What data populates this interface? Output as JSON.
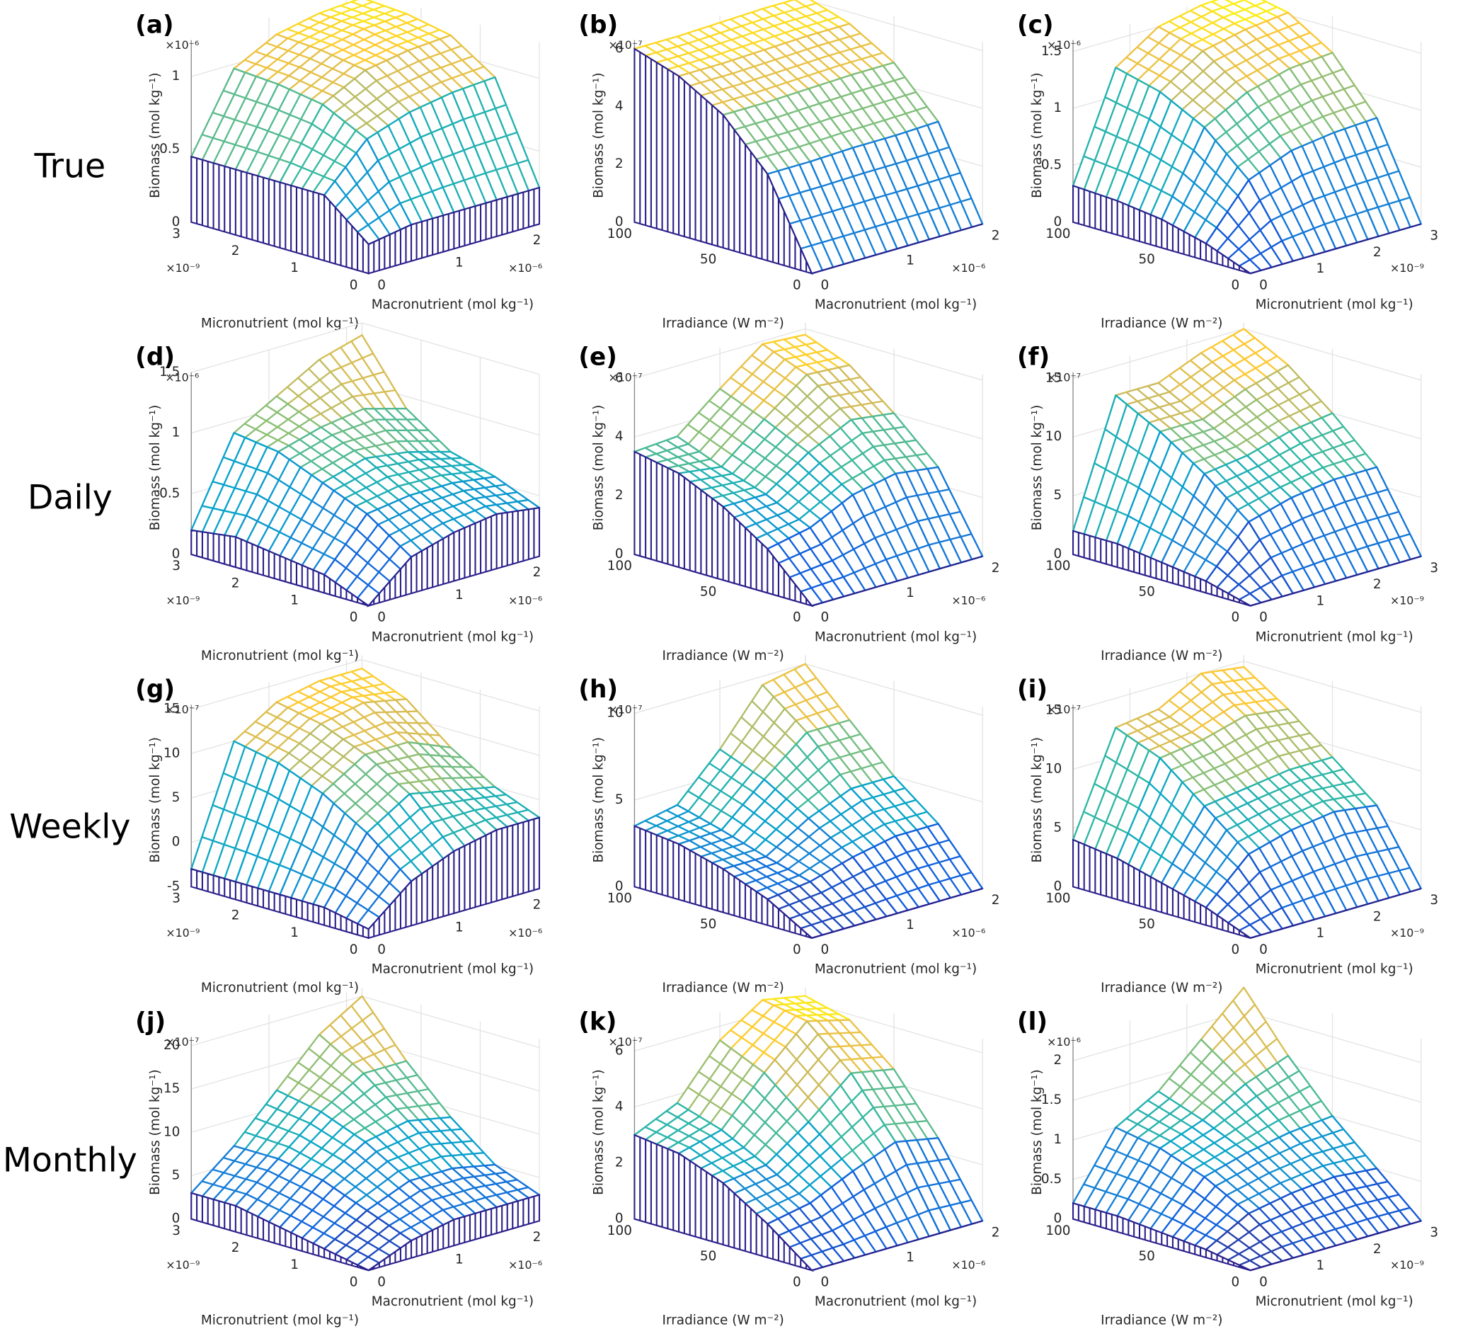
{
  "row_labels": [
    "True",
    "Daily",
    "Weekly",
    "Monthly"
  ],
  "colormap": [
    "#352a87",
    "#0f5cdd",
    "#1481d6",
    "#06a4ca",
    "#2eb7a4",
    "#87bf77",
    "#d1bb59",
    "#fec832",
    "#f9fb0e"
  ],
  "chart_data": [
    {
      "type": "surface",
      "panel_label": "(a)",
      "zlabel": "Biomass (mol kg⁻¹)",
      "xlabel": "Micronutrient (mol kg⁻¹)",
      "ylabel": "Macronutrient (mol kg⁻¹)",
      "zexponent": "×10⁻⁶",
      "xexponent": "×10⁻⁹",
      "yexponent": "×10⁻⁶",
      "xlim": [
        0,
        3
      ],
      "xticks": [
        0,
        1,
        2,
        3
      ],
      "ylim": [
        0,
        2.2
      ],
      "yticks": [
        0,
        1,
        2
      ],
      "zlim": [
        0,
        1.25
      ],
      "zticks": [
        0,
        0.5,
        1
      ],
      "x": [
        0,
        0.75,
        1.5,
        2.25,
        3
      ],
      "y": [
        0,
        0.55,
        1.1,
        1.65,
        2.2
      ],
      "z": [
        [
          0.2,
          0.25,
          0.25,
          0.25,
          0.25
        ],
        [
          0.45,
          0.75,
          0.85,
          0.9,
          0.92
        ],
        [
          0.45,
          0.9,
          1.05,
          1.1,
          1.12
        ],
        [
          0.45,
          0.95,
          1.1,
          1.16,
          1.18
        ],
        [
          0.45,
          0.97,
          1.12,
          1.18,
          1.2
        ]
      ]
    },
    {
      "type": "surface",
      "panel_label": "(b)",
      "zlabel": "Biomass (mol kg⁻¹)",
      "xlabel": "Irradiance (W m⁻²)",
      "ylabel": "Macronutrient (mol kg⁻¹)",
      "zexponent": "×10⁻⁷",
      "yexponent": "×10⁻⁶",
      "xlim": [
        0,
        100
      ],
      "xticks": [
        0,
        50,
        100
      ],
      "ylim": [
        0,
        2
      ],
      "yticks": [
        0,
        1,
        2
      ],
      "zlim": [
        0,
        6.3
      ],
      "zticks": [
        0,
        2,
        4,
        6
      ],
      "x": [
        0,
        25,
        50,
        75,
        100
      ],
      "y": [
        0,
        0.5,
        1,
        1.5,
        2
      ],
      "z": [
        [
          0,
          0,
          0,
          0,
          0
        ],
        [
          3.0,
          3.0,
          3.05,
          3.05,
          3.1
        ],
        [
          4.6,
          4.6,
          4.65,
          4.7,
          4.7
        ],
        [
          5.5,
          5.5,
          5.55,
          5.6,
          5.6
        ],
        [
          6.0,
          6.0,
          6.05,
          6.1,
          6.1
        ]
      ]
    },
    {
      "type": "surface",
      "panel_label": "(c)",
      "zlabel": "Biomass (mol kg⁻¹)",
      "xlabel": "Irradiance (W m⁻²)",
      "ylabel": "Micronutrient (mol kg⁻¹)",
      "zexponent": "×10⁻⁶",
      "yexponent": "×10⁻⁹",
      "xlim": [
        0,
        100
      ],
      "xticks": [
        0,
        50,
        100
      ],
      "ylim": [
        0,
        3
      ],
      "yticks": [
        0,
        1,
        2,
        3
      ],
      "zlim": [
        0,
        1.6
      ],
      "zticks": [
        0,
        0.5,
        1,
        1.5
      ],
      "x": [
        0,
        25,
        50,
        75,
        100
      ],
      "y": [
        0,
        0.75,
        1.5,
        2.25,
        3
      ],
      "z": [
        [
          0,
          0,
          0,
          0,
          0
        ],
        [
          0.15,
          0.6,
          0.75,
          0.8,
          0.82
        ],
        [
          0.25,
          0.95,
          1.15,
          1.25,
          1.28
        ],
        [
          0.3,
          1.15,
          1.4,
          1.48,
          1.52
        ],
        [
          0.32,
          1.25,
          1.5,
          1.58,
          1.6
        ]
      ]
    },
    {
      "type": "surface",
      "panel_label": "(d)",
      "zlabel": "Biomass (mol kg⁻¹)",
      "xlabel": "Micronutrient (mol kg⁻¹)",
      "ylabel": "Macronutrient (mol kg⁻¹)",
      "zexponent": "×10⁻⁶",
      "xexponent": "×10⁻⁹",
      "yexponent": "×10⁻⁶",
      "xlim": [
        0,
        3
      ],
      "xticks": [
        0,
        1,
        2,
        3
      ],
      "ylim": [
        0,
        2.2
      ],
      "yticks": [
        0,
        1,
        2
      ],
      "zlim": [
        0,
        1.5
      ],
      "zticks": [
        0,
        0.5,
        1,
        1.5
      ],
      "x": [
        0,
        0.75,
        1.5,
        2.25,
        3
      ],
      "y": [
        0,
        0.55,
        1.1,
        1.65,
        2.2
      ],
      "z": [
        [
          0,
          0.3,
          0.4,
          0.45,
          0.4
        ],
        [
          0.15,
          0.55,
          0.6,
          0.6,
          0.55
        ],
        [
          0.2,
          0.7,
          0.8,
          0.75,
          0.65
        ],
        [
          0.25,
          0.85,
          0.95,
          1.0,
          0.9
        ],
        [
          0.2,
          0.9,
          1.1,
          1.3,
          1.4
        ]
      ]
    },
    {
      "type": "surface",
      "panel_label": "(e)",
      "zlabel": "Biomass (mol kg⁻¹)",
      "xlabel": "Irradiance (W m⁻²)",
      "ylabel": "Macronutrient (mol kg⁻¹)",
      "zexponent": "×10⁻⁷",
      "yexponent": "×10⁻⁶",
      "xlim": [
        0,
        100
      ],
      "xticks": [
        0,
        50,
        100
      ],
      "ylim": [
        0,
        2
      ],
      "yticks": [
        0,
        1,
        2
      ],
      "zlim": [
        0,
        6.2
      ],
      "zticks": [
        0,
        2,
        4,
        6
      ],
      "x": [
        0,
        25,
        50,
        75,
        100
      ],
      "y": [
        0,
        0.5,
        1,
        1.5,
        2
      ],
      "z": [
        [
          0,
          0,
          0,
          0,
          0
        ],
        [
          1.5,
          1.8,
          2.5,
          2.8,
          2.6
        ],
        [
          2.5,
          2.5,
          3.5,
          4.2,
          4.0
        ],
        [
          3.2,
          3.0,
          4.2,
          5.3,
          5.2
        ],
        [
          3.5,
          3.6,
          4.8,
          5.9,
          5.8
        ]
      ]
    },
    {
      "type": "surface",
      "panel_label": "(f)",
      "zlabel": "Biomass (mol kg⁻¹)",
      "xlabel": "Irradiance (W m⁻²)",
      "ylabel": "Micronutrient (mol kg⁻¹)",
      "zexponent": "×10⁻⁷",
      "yexponent": "×10⁻⁹",
      "xlim": [
        0,
        100
      ],
      "xticks": [
        0,
        50,
        100
      ],
      "ylim": [
        0,
        3
      ],
      "yticks": [
        0,
        1,
        2,
        3
      ],
      "zlim": [
        0,
        15.5
      ],
      "zticks": [
        0,
        5,
        10,
        15
      ],
      "x": [
        0,
        25,
        50,
        75,
        100
      ],
      "y": [
        0,
        0.75,
        1.5,
        2.25,
        3
      ],
      "z": [
        [
          0,
          0,
          0,
          0,
          0
        ],
        [
          1,
          5,
          6,
          6.5,
          6.5
        ],
        [
          1.5,
          8,
          8.5,
          9.5,
          10
        ],
        [
          2,
          10.5,
          10.5,
          12,
          13
        ],
        [
          2,
          12.5,
          12.5,
          14,
          15
        ]
      ]
    },
    {
      "type": "surface",
      "panel_label": "(g)",
      "zlabel": "Biomass (mol kg⁻¹)",
      "xlabel": "Micronutrient (mol kg⁻¹)",
      "ylabel": "Macronutrient (mol kg⁻¹)",
      "zexponent": "×10⁻⁷",
      "xexponent": "×10⁻⁹",
      "yexponent": "×10⁻⁶",
      "xlim": [
        0,
        3
      ],
      "xticks": [
        0,
        1,
        2,
        3
      ],
      "ylim": [
        0,
        2.2
      ],
      "yticks": [
        0,
        1,
        2
      ],
      "zlim": [
        -5,
        15.5
      ],
      "zticks": [
        -5,
        0,
        5,
        10,
        15
      ],
      "x": [
        0,
        0.75,
        1.5,
        2.25,
        3
      ],
      "y": [
        0,
        0.55,
        1.1,
        1.65,
        2.2
      ],
      "z": [
        [
          -4,
          0,
          2,
          3,
          3
        ],
        [
          -3,
          4,
          7,
          6,
          5
        ],
        [
          -3,
          7,
          10,
          10,
          8
        ],
        [
          -3,
          9,
          12,
          13,
          12
        ],
        [
          -3,
          10,
          13,
          14,
          14
        ]
      ]
    },
    {
      "type": "surface",
      "panel_label": "(h)",
      "zlabel": "Biomass (mol kg⁻¹)",
      "xlabel": "Irradiance (W m⁻²)",
      "ylabel": "Macronutrient (mol kg⁻¹)",
      "zexponent": "×10⁻⁷",
      "yexponent": "×10⁻⁶",
      "xlim": [
        0,
        100
      ],
      "xticks": [
        0,
        50,
        100
      ],
      "ylim": [
        0,
        2
      ],
      "yticks": [
        0,
        1,
        2
      ],
      "zlim": [
        0,
        10.5
      ],
      "zticks": [
        0,
        5,
        10
      ],
      "x": [
        0,
        25,
        50,
        75,
        100
      ],
      "y": [
        0,
        0.5,
        1,
        1.5,
        2
      ],
      "z": [
        [
          0,
          0,
          0,
          0,
          0
        ],
        [
          1.5,
          1.8,
          2.5,
          3,
          3
        ],
        [
          2.5,
          2.5,
          4,
          5,
          5
        ],
        [
          3.2,
          3.3,
          5.5,
          7.5,
          7.5
        ],
        [
          3.5,
          4,
          6.5,
          9.5,
          10
        ]
      ]
    },
    {
      "type": "surface",
      "panel_label": "(i)",
      "zlabel": "Biomass (mol kg⁻¹)",
      "xlabel": "Irradiance (W m⁻²)",
      "ylabel": "Micronutrient (mol kg⁻¹)",
      "zexponent": "×10⁻⁷",
      "yexponent": "×10⁻⁹",
      "xlim": [
        0,
        100
      ],
      "xticks": [
        0,
        50,
        100
      ],
      "ylim": [
        0,
        3
      ],
      "yticks": [
        0,
        1,
        2,
        3
      ],
      "zlim": [
        0,
        15.5
      ],
      "zticks": [
        0,
        5,
        10,
        15
      ],
      "x": [
        0,
        25,
        50,
        75,
        100
      ],
      "y": [
        0,
        0.75,
        1.5,
        2.25,
        3
      ],
      "z": [
        [
          0,
          0,
          0,
          0,
          0
        ],
        [
          1.5,
          5,
          6,
          6.5,
          6
        ],
        [
          2.5,
          8,
          8.5,
          9,
          9
        ],
        [
          3.5,
          11,
          11.5,
          12.5,
          12
        ],
        [
          4,
          12.5,
          13,
          15,
          14.5
        ]
      ]
    },
    {
      "type": "surface",
      "panel_label": "(j)",
      "zlabel": "Biomass (mol kg⁻¹)",
      "xlabel": "Micronutrient (mol kg⁻¹)",
      "ylabel": "Macronutrient (mol kg⁻¹)",
      "zexponent": "×10⁻⁷",
      "xexponent": "×10⁻⁹",
      "yexponent": "×10⁻⁶",
      "xlim": [
        0,
        3
      ],
      "xticks": [
        0,
        1,
        2,
        3
      ],
      "ylim": [
        0,
        2.2
      ],
      "yticks": [
        0,
        1,
        2
      ],
      "zlim": [
        0,
        21
      ],
      "zticks": [
        0,
        5,
        10,
        15,
        20
      ],
      "x": [
        0,
        0.75,
        1.5,
        2.25,
        3
      ],
      "y": [
        0,
        0.55,
        1.1,
        1.65,
        2.2
      ],
      "z": [
        [
          0,
          2,
          3,
          3,
          3
        ],
        [
          1,
          4,
          6,
          6,
          5
        ],
        [
          2,
          6,
          9,
          10,
          9
        ],
        [
          3,
          7,
          11,
          14,
          14
        ],
        [
          3,
          7,
          12,
          17,
          20
        ]
      ]
    },
    {
      "type": "surface",
      "panel_label": "(k)",
      "zlabel": "Biomass (mol kg⁻¹)",
      "xlabel": "Irradiance (W m⁻²)",
      "ylabel": "Macronutrient (mol kg⁻¹)",
      "zexponent": "×10⁻⁷",
      "yexponent": "×10⁻⁶",
      "xlim": [
        0,
        100
      ],
      "xticks": [
        0,
        50,
        100
      ],
      "ylim": [
        0,
        2
      ],
      "yticks": [
        0,
        1,
        2
      ],
      "zlim": [
        0,
        6.5
      ],
      "zticks": [
        0,
        2,
        4,
        6
      ],
      "x": [
        0,
        25,
        50,
        75,
        100
      ],
      "y": [
        0,
        0.5,
        1,
        1.5,
        2
      ],
      "z": [
        [
          0,
          0,
          0,
          0,
          0
        ],
        [
          1.2,
          1.5,
          2.2,
          2.8,
          2.5
        ],
        [
          2.2,
          2.4,
          3.5,
          4.8,
          4.5
        ],
        [
          2.8,
          3.2,
          4.8,
          6.2,
          5.8
        ],
        [
          3,
          3.7,
          5.5,
          6.5,
          6.2
        ]
      ]
    },
    {
      "type": "surface",
      "panel_label": "(l)",
      "zlabel": "Biomass (mol kg⁻¹)",
      "xlabel": "Irradiance (W m⁻²)",
      "ylabel": "Micronutrient (mol kg⁻¹)",
      "zexponent": "×10⁻⁶",
      "yexponent": "×10⁻⁹",
      "xlim": [
        0,
        100
      ],
      "xticks": [
        0,
        50,
        100
      ],
      "ylim": [
        0,
        3
      ],
      "yticks": [
        0,
        1,
        2,
        3
      ],
      "zlim": [
        0,
        2.3
      ],
      "zticks": [
        0,
        0.5,
        1,
        1.5,
        2
      ],
      "x": [
        0,
        25,
        50,
        75,
        100
      ],
      "y": [
        0,
        0.75,
        1.5,
        2.25,
        3
      ],
      "z": [
        [
          0,
          0,
          0,
          0,
          0
        ],
        [
          0.1,
          0.4,
          0.5,
          0.55,
          0.5
        ],
        [
          0.15,
          0.7,
          0.85,
          0.95,
          1.0
        ],
        [
          0.2,
          0.9,
          1.1,
          1.4,
          1.6
        ],
        [
          0.2,
          1.0,
          1.3,
          1.8,
          2.3
        ]
      ]
    }
  ]
}
